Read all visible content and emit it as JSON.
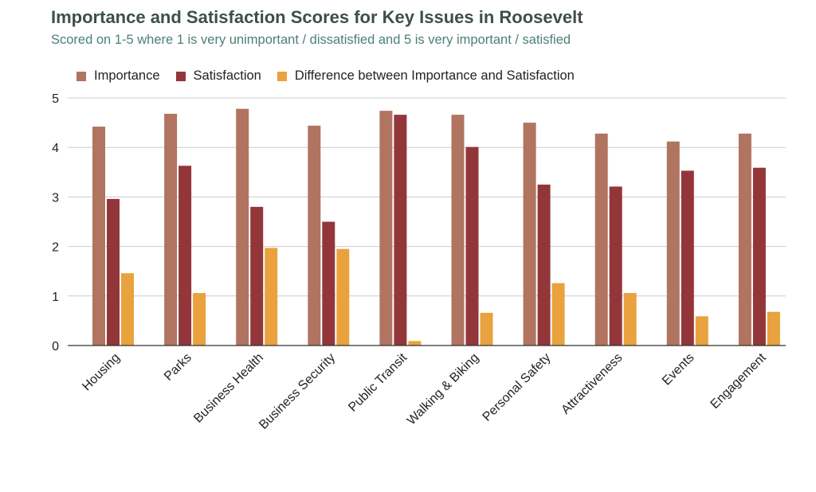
{
  "chart_data": {
    "type": "bar",
    "title": "Importance and Satisfaction Scores for Key Issues in Roosevelt",
    "subtitle": "Scored on 1-5 where 1 is very unimportant / dissatisfied and 5 is very important / satisfied",
    "xlabel": "",
    "ylabel": "",
    "ylim": [
      0,
      5
    ],
    "yticks": [
      0,
      1,
      2,
      3,
      4,
      5
    ],
    "grid": true,
    "legend_position": "top-left",
    "categories": [
      "Housing",
      "Parks",
      "Business Health",
      "Business Security",
      "Public Transit",
      "Walking & Biking",
      "Personal Safety",
      "Attractiveness",
      "Events",
      "Engagement"
    ],
    "series": [
      {
        "name": "Importance",
        "color": "#b07460",
        "values": [
          4.42,
          4.68,
          4.78,
          4.44,
          4.74,
          4.66,
          4.5,
          4.28,
          4.12,
          4.28
        ]
      },
      {
        "name": "Satisfaction",
        "color": "#93363a",
        "values": [
          2.96,
          3.63,
          2.8,
          2.5,
          4.66,
          4.01,
          3.25,
          3.21,
          3.53,
          3.59
        ]
      },
      {
        "name": "Difference between Importance and Satisfaction",
        "color": "#e9a23e",
        "values": [
          1.46,
          1.06,
          1.97,
          1.95,
          0.09,
          0.66,
          1.26,
          1.06,
          0.59,
          0.68
        ]
      }
    ]
  }
}
